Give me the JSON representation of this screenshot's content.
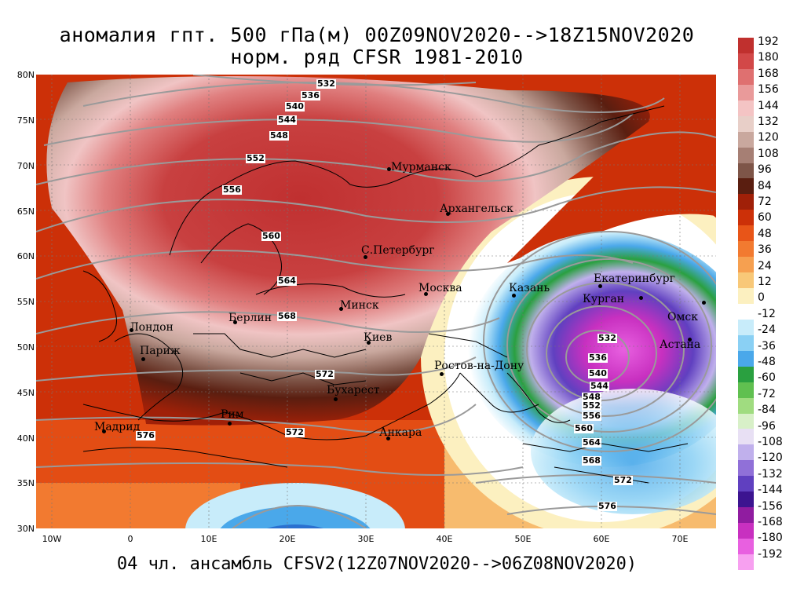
{
  "title_line1": "аномалия гпт. 500 гПа(м) 00Z09NOV2020-->18Z15NOV2020",
  "title_line2": "норм. ряд CFSR 1981-2010",
  "footer": "04 чл. ансамбль CFSV2(12Z07NOV2020-->06Z08NOV2020)",
  "lat_labels": [
    "80N",
    "75N",
    "70N",
    "65N",
    "60N",
    "55N",
    "50N",
    "45N",
    "40N",
    "35N",
    "30N"
  ],
  "lon_labels": [
    "10W",
    "0",
    "10E",
    "20E",
    "30E",
    "40E",
    "50E",
    "60E",
    "70E"
  ],
  "cities": [
    {
      "name": "Мурманск"
    },
    {
      "name": "Архангельск"
    },
    {
      "name": "С.Петербург"
    },
    {
      "name": "Москва"
    },
    {
      "name": "Казань"
    },
    {
      "name": "Екатеринбург"
    },
    {
      "name": "Курган"
    },
    {
      "name": "Омск"
    },
    {
      "name": "Астана"
    },
    {
      "name": "Минск"
    },
    {
      "name": "Киев"
    },
    {
      "name": "Берлин"
    },
    {
      "name": "Лондон"
    },
    {
      "name": "Париж"
    },
    {
      "name": "Мадрид"
    },
    {
      "name": "Рим"
    },
    {
      "name": "Бухарест"
    },
    {
      "name": "Анкара"
    },
    {
      "name": "Ростов-на-Дону"
    }
  ],
  "contour_labels": [
    "532",
    "536",
    "540",
    "544",
    "548",
    "552",
    "556",
    "560",
    "564",
    "568",
    "572",
    "576",
    "532",
    "536",
    "540",
    "544",
    "548",
    "552",
    "556",
    "560",
    "564",
    "568",
    "572",
    "576",
    "572"
  ],
  "colorbar": {
    "labels": [
      "192",
      "180",
      "168",
      "156",
      "144",
      "132",
      "120",
      "108",
      "96",
      "84",
      "72",
      "60",
      "48",
      "36",
      "24",
      "12",
      "0",
      "-12",
      "-24",
      "-36",
      "-48",
      "-60",
      "-72",
      "-84",
      "-96",
      "-108",
      "-120",
      "-132",
      "-144",
      "-156",
      "-168",
      "-180",
      "-192"
    ],
    "colors": [
      "#c0302e",
      "#d24848",
      "#df7070",
      "#e99a9a",
      "#f4c4c4",
      "#e8cfc8",
      "#c9a89e",
      "#a67f74",
      "#7e5548",
      "#5a1e10",
      "#a02008",
      "#cc3008",
      "#e85518",
      "#f27a30",
      "#f6a050",
      "#f8c878",
      "#fcf0c0",
      "#ffffff",
      "#c8ecfa",
      "#8ad0f4",
      "#4aa8ea",
      "#2aa040",
      "#60c050",
      "#a0dc80",
      "#d8f0c8",
      "#e8e0f4",
      "#c0b0ec",
      "#9070d8",
      "#6040c0",
      "#3c1490",
      "#901ca0",
      "#c830c0",
      "#e860e0",
      "#f7a0f0"
    ]
  },
  "colors": {
    "title": "#000000",
    "contour": "#9a9a9a",
    "coast": "#000000"
  }
}
